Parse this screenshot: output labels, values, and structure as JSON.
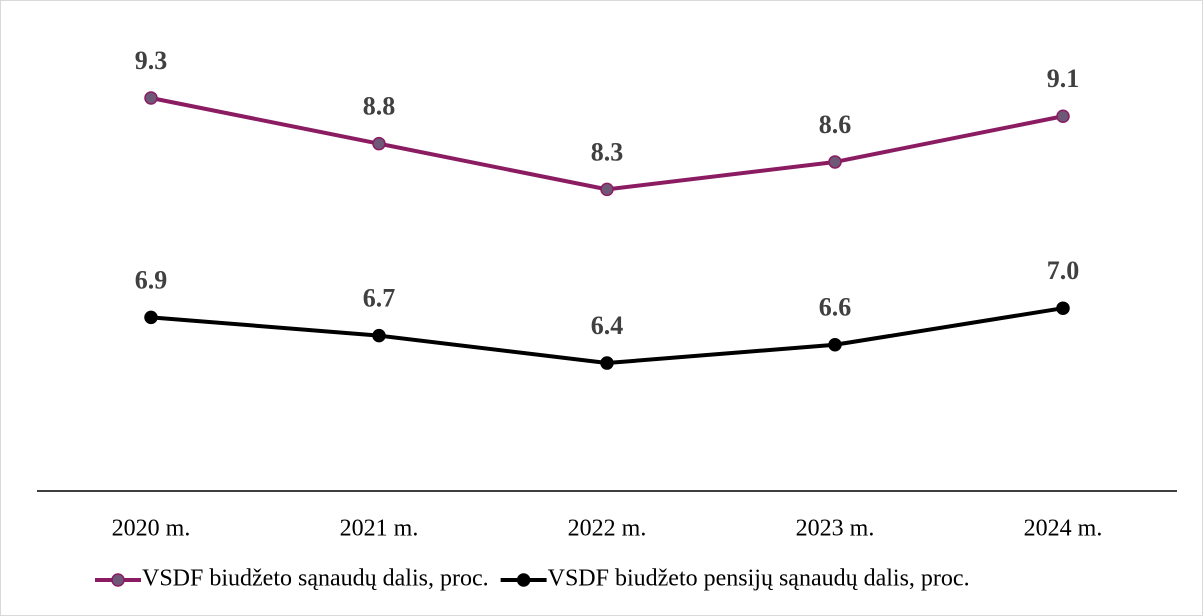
{
  "chart_data": {
    "type": "line",
    "categories": [
      "2020 m.",
      "2021 m.",
      "2022 m.",
      "2023 m.",
      "2024 m."
    ],
    "series": [
      {
        "name": "VSDF biudžeto sąnaudų dalis, proc.",
        "color": "#8b1c62",
        "marker_fill": "#6e5878",
        "values": [
          9.3,
          8.8,
          8.3,
          8.6,
          9.1
        ]
      },
      {
        "name": "VSDF biudžeto pensijų sąnaudų dalis, proc.",
        "color": "#000000",
        "marker_fill": "#000000",
        "values": [
          6.9,
          6.7,
          6.4,
          6.6,
          7.0
        ],
        "value_labels": [
          "6.9",
          "6.7",
          "6.4",
          "6.6",
          "7.0"
        ]
      }
    ],
    "ylim": [
      5,
      10
    ],
    "grid": false,
    "legend": "bottom"
  }
}
